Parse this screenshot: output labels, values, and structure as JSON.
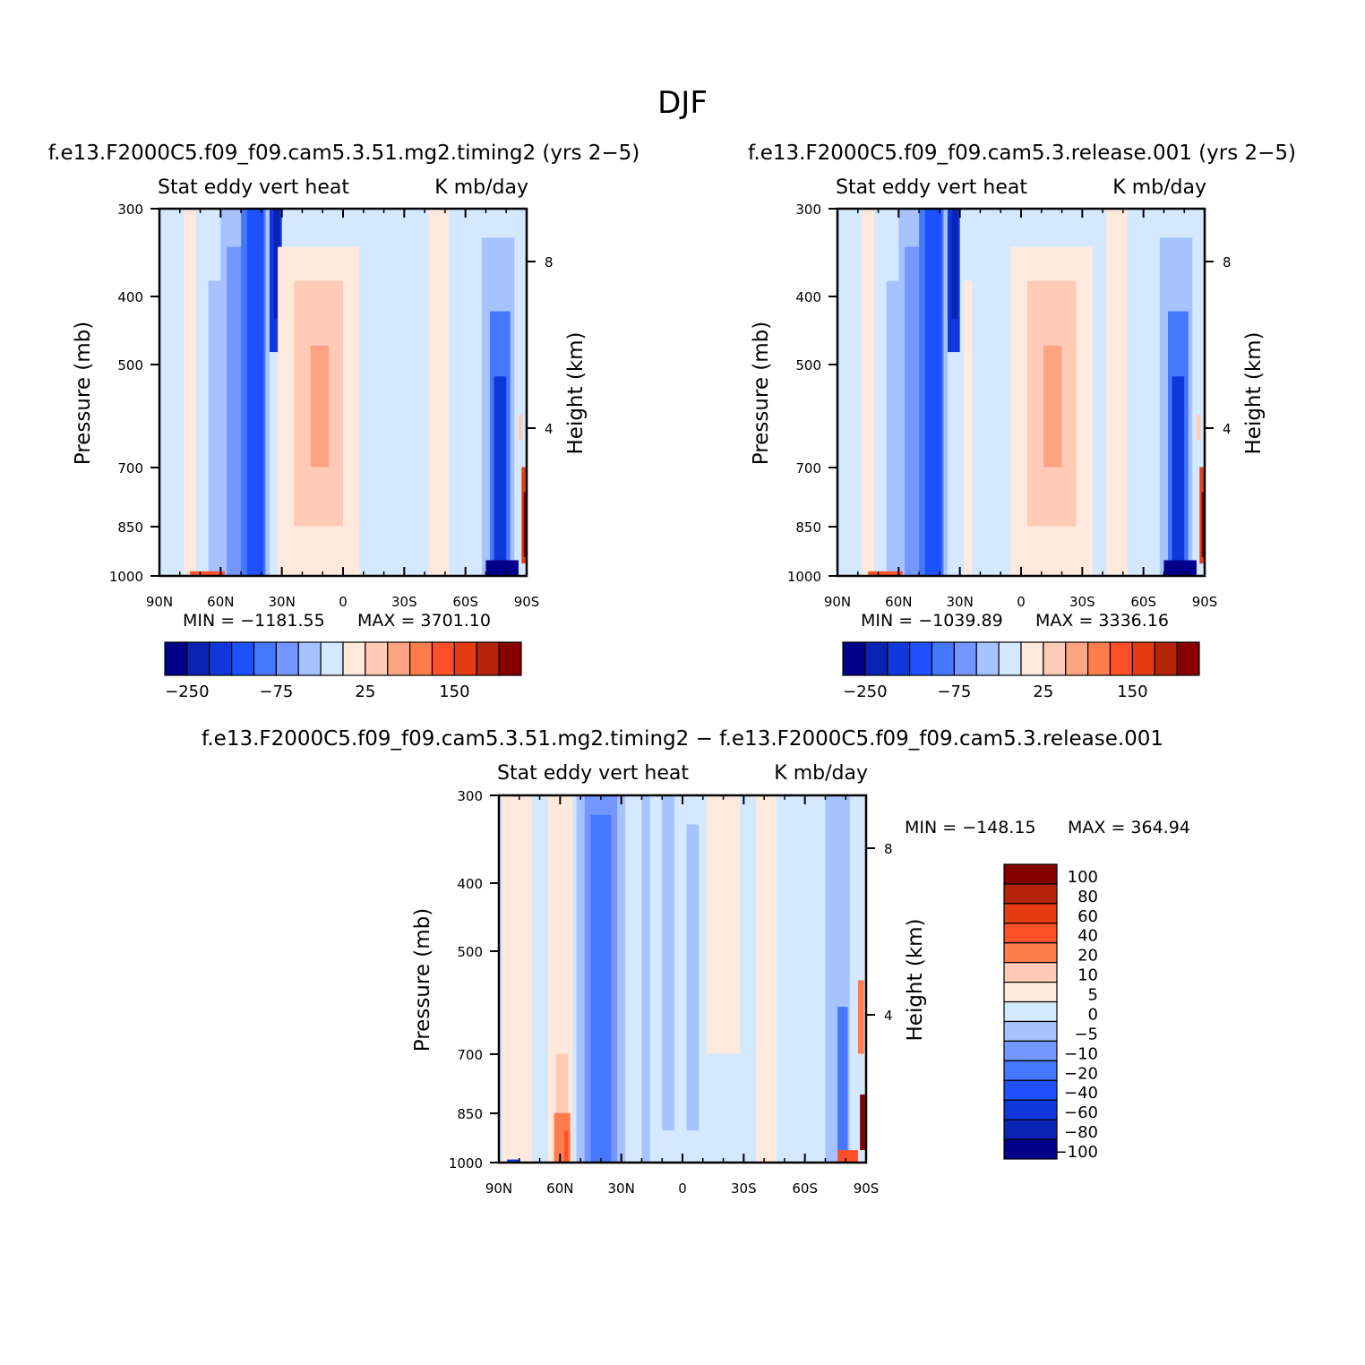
{
  "figure": {
    "title": "DJF"
  },
  "colors": {
    "panel_palette": [
      "#00008b",
      "#0a23b4",
      "#0f37dc",
      "#1e50ff",
      "#4678ff",
      "#7396ff",
      "#a6c2ff",
      "#d4e8ff",
      "#ffe9dc",
      "#ffcbb7",
      "#ffa482",
      "#ff7d4b",
      "#ff5028",
      "#e63c14",
      "#b4230a",
      "#870000"
    ],
    "diff_palette": [
      "#00008b",
      "#0a23b4",
      "#0f37dc",
      "#1e50ff",
      "#4678ff",
      "#7396ff",
      "#a6c2ff",
      "#d4e8ff",
      "#ffe9dc",
      "#ffcbb7",
      "#ff7d4b",
      "#ff5028",
      "#e63c14",
      "#b4230a",
      "#870000"
    ]
  },
  "chart_data": [
    {
      "type": "heatmap",
      "title": "f.e13.F2000C5.f09_f09.cam5.3.51.mg2.timing2 (yrs 2−5)",
      "subtitle_left": "Stat eddy vert heat",
      "subtitle_right": "K mb/day",
      "xlabel": "",
      "ylabel": "Pressure (mb)",
      "ylabel_right": "Height (km)",
      "x_ticks": [
        "90N",
        "60N",
        "30N",
        "0",
        "30S",
        "60S",
        "90S"
      ],
      "y_ticks": [
        "300",
        "400",
        "500",
        "700",
        "850",
        "1000"
      ],
      "y_ticks_right": [
        "8",
        "4"
      ],
      "y_scale": "log",
      "ylim": [
        1000,
        300
      ],
      "min_label": "MIN = −1181.55",
      "max_label": "MAX = 3701.10",
      "min": -1181.55,
      "max": 3701.1,
      "colorbar_labels": [
        "−250",
        "−75",
        "25",
        "150"
      ],
      "colorbar_orientation": "horizontal",
      "features": [
        {
          "lat": 42,
          "p_top": 300,
          "p_bot": 1000,
          "value": -60
        },
        {
          "lat": 32,
          "p_top": 300,
          "p_bot": 460,
          "value": -100
        },
        {
          "lat": 12,
          "p_top": 400,
          "p_bot": 800,
          "value": 25
        },
        {
          "lat": -75,
          "p_top": 360,
          "p_bot": 1000,
          "value": -100
        },
        {
          "lat": -89,
          "p_top": 700,
          "p_bot": 980,
          "value": 250
        }
      ]
    },
    {
      "type": "heatmap",
      "title": "f.e13.F2000C5.f09_f09.cam5.3.release.001 (yrs 2−5)",
      "subtitle_left": "Stat eddy vert heat",
      "subtitle_right": "K mb/day",
      "xlabel": "",
      "ylabel": "Pressure (mb)",
      "ylabel_right": "Height (km)",
      "x_ticks": [
        "90N",
        "60N",
        "30N",
        "0",
        "30S",
        "60S",
        "90S"
      ],
      "y_ticks": [
        "300",
        "400",
        "500",
        "700",
        "850",
        "1000"
      ],
      "y_ticks_right": [
        "8",
        "4"
      ],
      "y_scale": "log",
      "ylim": [
        1000,
        300
      ],
      "min_label": "MIN = −1039.89",
      "max_label": "MAX = 3336.16",
      "min": -1039.89,
      "max": 3336.16,
      "colorbar_labels": [
        "−250",
        "−75",
        "25",
        "150"
      ],
      "colorbar_orientation": "horizontal",
      "features": [
        {
          "lat": 42,
          "p_top": 300,
          "p_bot": 1000,
          "value": -60
        },
        {
          "lat": 31,
          "p_top": 300,
          "p_bot": 460,
          "value": -100
        },
        {
          "lat": -15,
          "p_top": 400,
          "p_bot": 750,
          "value": 50
        },
        {
          "lat": -75,
          "p_top": 360,
          "p_bot": 1000,
          "value": -100
        },
        {
          "lat": -89,
          "p_top": 700,
          "p_bot": 980,
          "value": 250
        }
      ]
    },
    {
      "type": "heatmap",
      "title": "f.e13.F2000C5.f09_f09.cam5.3.51.mg2.timing2 − f.e13.F2000C5.f09_f09.cam5.3.release.001",
      "subtitle_left": "Stat eddy vert heat",
      "subtitle_right": "K mb/day",
      "xlabel": "",
      "ylabel": "Pressure (mb)",
      "ylabel_right": "Height (km)",
      "x_ticks": [
        "90N",
        "60N",
        "30N",
        "0",
        "30S",
        "60S",
        "90S"
      ],
      "y_ticks": [
        "300",
        "400",
        "500",
        "700",
        "850",
        "1000"
      ],
      "y_ticks_right": [
        "8",
        "4"
      ],
      "y_scale": "log",
      "ylim": [
        1000,
        300
      ],
      "min_label": "MIN = −148.15",
      "max_label": "MAX = 364.94",
      "min": -148.15,
      "max": 364.94,
      "colorbar_labels": [
        "100",
        "80",
        "60",
        "40",
        "20",
        "10",
        "5",
        "0",
        "−5",
        "−10",
        "−20",
        "−40",
        "−60",
        "−80",
        "−100"
      ],
      "colorbar_orientation": "vertical",
      "features": [
        {
          "lat": 60,
          "p_top": 600,
          "p_bot": 1000,
          "value": 20
        },
        {
          "lat": 40,
          "p_top": 320,
          "p_bot": 1000,
          "value": -20
        },
        {
          "lat": -80,
          "p_top": 900,
          "p_bot": 1000,
          "value": 60
        }
      ]
    }
  ]
}
